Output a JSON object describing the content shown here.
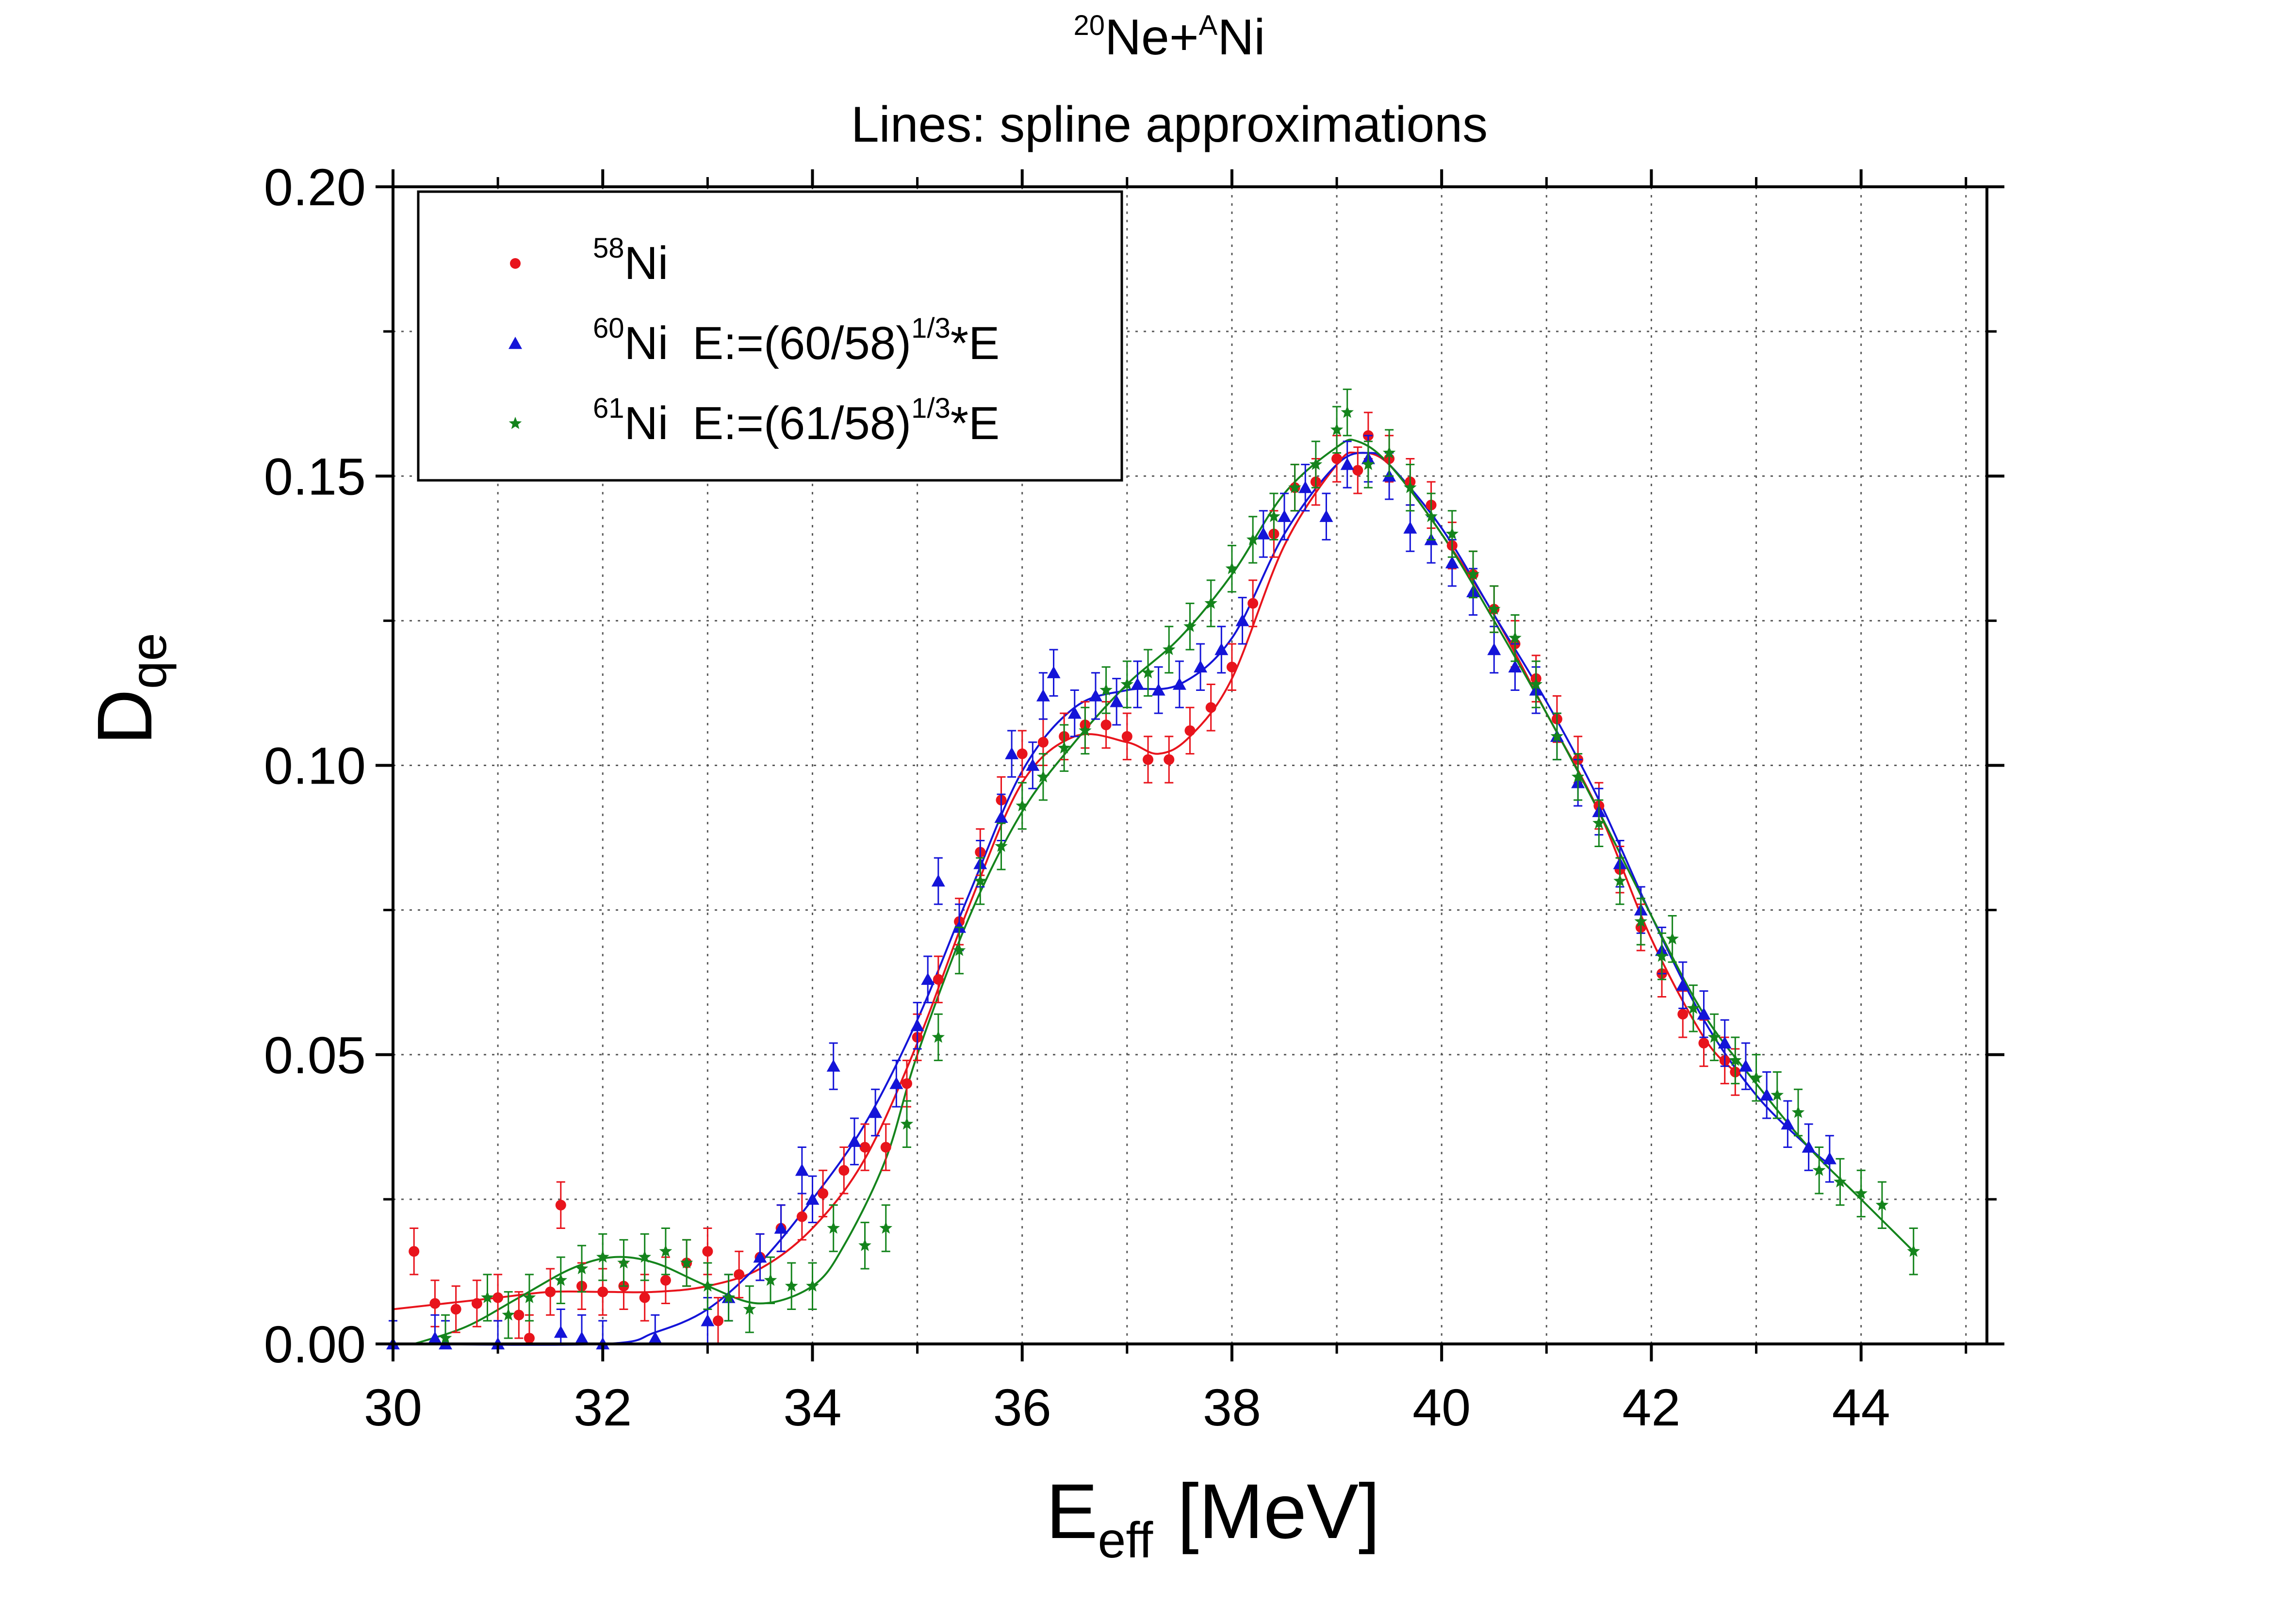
{
  "chart_data": {
    "type": "scatter",
    "title": {
      "line1": {
        "sup1": "20",
        "part1": "Ne+",
        "sup2": "A",
        "part2": "Ni"
      },
      "line2": "Lines: spline approximations"
    },
    "xlabel": {
      "main": "E",
      "sub": "eff",
      "unit": "[MeV]"
    },
    "ylabel": {
      "main": "D",
      "sub": "qe"
    },
    "xlim": [
      30,
      45.2
    ],
    "ylim": [
      0,
      0.2
    ],
    "xticks": [
      "30",
      "32",
      "34",
      "36",
      "38",
      "40",
      "42",
      "44"
    ],
    "yticks": [
      "0.00",
      "0.05",
      "0.10",
      "0.15",
      "0.20"
    ],
    "grid": true,
    "legend_position": "top-left",
    "series": [
      {
        "name": "58Ni",
        "color": "#e8141c",
        "marker": "circle",
        "legend": {
          "sup": "58",
          "label": "Ni",
          "transform": "",
          "transform_sup": "",
          "transform_end": ""
        },
        "points": [
          [
            30.2,
            0.016
          ],
          [
            30.4,
            0.007
          ],
          [
            30.6,
            0.006
          ],
          [
            30.8,
            0.007
          ],
          [
            31.0,
            0.008
          ],
          [
            31.2,
            0.005
          ],
          [
            31.3,
            0.001
          ],
          [
            31.5,
            0.009
          ],
          [
            31.6,
            0.024
          ],
          [
            31.8,
            0.01
          ],
          [
            32.0,
            0.009
          ],
          [
            32.2,
            0.01
          ],
          [
            32.4,
            0.008
          ],
          [
            32.6,
            0.011
          ],
          [
            32.8,
            0.014
          ],
          [
            33.0,
            0.016
          ],
          [
            33.1,
            0.004
          ],
          [
            33.3,
            0.012
          ],
          [
            33.5,
            0.015
          ],
          [
            33.7,
            0.02
          ],
          [
            33.9,
            0.022
          ],
          [
            34.1,
            0.026
          ],
          [
            34.3,
            0.03
          ],
          [
            34.5,
            0.034
          ],
          [
            34.7,
            0.034
          ],
          [
            34.9,
            0.045
          ],
          [
            35.0,
            0.053
          ],
          [
            35.2,
            0.063
          ],
          [
            35.4,
            0.073
          ],
          [
            35.6,
            0.085
          ],
          [
            35.8,
            0.094
          ],
          [
            36.0,
            0.102
          ],
          [
            36.2,
            0.104
          ],
          [
            36.4,
            0.105
          ],
          [
            36.6,
            0.107
          ],
          [
            36.8,
            0.107
          ],
          [
            37.0,
            0.105
          ],
          [
            37.2,
            0.101
          ],
          [
            37.4,
            0.101
          ],
          [
            37.6,
            0.106
          ],
          [
            37.8,
            0.11
          ],
          [
            38.0,
            0.117
          ],
          [
            38.2,
            0.128
          ],
          [
            38.4,
            0.14
          ],
          [
            38.6,
            0.148
          ],
          [
            38.8,
            0.149
          ],
          [
            39.0,
            0.153
          ],
          [
            39.2,
            0.151
          ],
          [
            39.3,
            0.157
          ],
          [
            39.5,
            0.153
          ],
          [
            39.7,
            0.149
          ],
          [
            39.9,
            0.145
          ],
          [
            40.1,
            0.138
          ],
          [
            40.3,
            0.133
          ],
          [
            40.5,
            0.127
          ],
          [
            40.7,
            0.121
          ],
          [
            40.9,
            0.115
          ],
          [
            41.1,
            0.108
          ],
          [
            41.3,
            0.101
          ],
          [
            41.5,
            0.093
          ],
          [
            41.7,
            0.082
          ],
          [
            41.9,
            0.072
          ],
          [
            42.1,
            0.064
          ],
          [
            42.3,
            0.057
          ],
          [
            42.5,
            0.052
          ],
          [
            42.7,
            0.049
          ],
          [
            42.8,
            0.047
          ]
        ],
        "curve": [
          [
            30.0,
            0.006
          ],
          [
            30.5,
            0.007
          ],
          [
            31.0,
            0.008
          ],
          [
            31.5,
            0.009
          ],
          [
            32.0,
            0.009
          ],
          [
            32.5,
            0.009
          ],
          [
            33.0,
            0.01
          ],
          [
            33.5,
            0.013
          ],
          [
            34.0,
            0.02
          ],
          [
            34.5,
            0.032
          ],
          [
            35.0,
            0.052
          ],
          [
            35.5,
            0.076
          ],
          [
            36.0,
            0.097
          ],
          [
            36.5,
            0.105
          ],
          [
            37.0,
            0.104
          ],
          [
            37.3,
            0.102
          ],
          [
            37.6,
            0.105
          ],
          [
            38.0,
            0.115
          ],
          [
            38.5,
            0.138
          ],
          [
            39.0,
            0.152
          ],
          [
            39.2,
            0.154
          ],
          [
            39.5,
            0.152
          ],
          [
            40.0,
            0.14
          ],
          [
            40.5,
            0.126
          ],
          [
            41.0,
            0.109
          ],
          [
            41.5,
            0.092
          ],
          [
            42.0,
            0.07
          ],
          [
            42.5,
            0.053
          ],
          [
            42.8,
            0.047
          ]
        ]
      },
      {
        "name": "60Ni",
        "color": "#1414d8",
        "marker": "triangle",
        "legend": {
          "sup": "60",
          "label": "Ni",
          "transform": "E:=(60/58)",
          "transform_sup": "1/3",
          "transform_end": "*E"
        },
        "points": [
          [
            30.0,
            0.0
          ],
          [
            30.4,
            0.001
          ],
          [
            30.5,
            0.0
          ],
          [
            31.0,
            0.0
          ],
          [
            31.6,
            0.002
          ],
          [
            31.8,
            0.001
          ],
          [
            32.0,
            0.0
          ],
          [
            32.5,
            0.001
          ],
          [
            33.0,
            0.004
          ],
          [
            33.2,
            0.008
          ],
          [
            33.5,
            0.015
          ],
          [
            33.7,
            0.02
          ],
          [
            33.9,
            0.03
          ],
          [
            34.0,
            0.025
          ],
          [
            34.2,
            0.048
          ],
          [
            34.4,
            0.035
          ],
          [
            34.6,
            0.04
          ],
          [
            34.8,
            0.045
          ],
          [
            35.0,
            0.055
          ],
          [
            35.1,
            0.063
          ],
          [
            35.2,
            0.08
          ],
          [
            35.4,
            0.072
          ],
          [
            35.6,
            0.083
          ],
          [
            35.8,
            0.091
          ],
          [
            35.9,
            0.102
          ],
          [
            36.1,
            0.1
          ],
          [
            36.2,
            0.112
          ],
          [
            36.3,
            0.116
          ],
          [
            36.5,
            0.109
          ],
          [
            36.7,
            0.112
          ],
          [
            36.9,
            0.111
          ],
          [
            37.1,
            0.114
          ],
          [
            37.3,
            0.113
          ],
          [
            37.5,
            0.114
          ],
          [
            37.7,
            0.117
          ],
          [
            37.9,
            0.12
          ],
          [
            38.1,
            0.125
          ],
          [
            38.3,
            0.14
          ],
          [
            38.5,
            0.143
          ],
          [
            38.7,
            0.148
          ],
          [
            38.9,
            0.143
          ],
          [
            39.1,
            0.152
          ],
          [
            39.3,
            0.153
          ],
          [
            39.5,
            0.15
          ],
          [
            39.7,
            0.141
          ],
          [
            39.9,
            0.139
          ],
          [
            40.1,
            0.135
          ],
          [
            40.3,
            0.13
          ],
          [
            40.5,
            0.12
          ],
          [
            40.7,
            0.117
          ],
          [
            40.9,
            0.113
          ],
          [
            41.1,
            0.105
          ],
          [
            41.3,
            0.097
          ],
          [
            41.5,
            0.092
          ],
          [
            41.7,
            0.083
          ],
          [
            41.9,
            0.075
          ],
          [
            42.1,
            0.068
          ],
          [
            42.3,
            0.062
          ],
          [
            42.5,
            0.057
          ],
          [
            42.7,
            0.052
          ],
          [
            42.9,
            0.048
          ],
          [
            43.1,
            0.043
          ],
          [
            43.3,
            0.038
          ],
          [
            43.5,
            0.034
          ],
          [
            43.7,
            0.032
          ]
        ],
        "curve": [
          [
            30.0,
            0.0
          ],
          [
            32.0,
            0.0
          ],
          [
            32.5,
            0.002
          ],
          [
            33.0,
            0.006
          ],
          [
            33.5,
            0.014
          ],
          [
            34.0,
            0.025
          ],
          [
            34.5,
            0.038
          ],
          [
            35.0,
            0.056
          ],
          [
            35.5,
            0.078
          ],
          [
            36.0,
            0.099
          ],
          [
            36.5,
            0.11
          ],
          [
            37.0,
            0.113
          ],
          [
            37.5,
            0.114
          ],
          [
            38.0,
            0.122
          ],
          [
            38.5,
            0.14
          ],
          [
            39.0,
            0.152
          ],
          [
            39.3,
            0.154
          ],
          [
            39.5,
            0.152
          ],
          [
            40.0,
            0.141
          ],
          [
            40.5,
            0.126
          ],
          [
            41.0,
            0.111
          ],
          [
            41.5,
            0.094
          ],
          [
            42.0,
            0.074
          ],
          [
            42.5,
            0.056
          ],
          [
            43.0,
            0.043
          ],
          [
            43.5,
            0.034
          ],
          [
            43.7,
            0.031
          ]
        ]
      },
      {
        "name": "61Ni",
        "color": "#14841c",
        "marker": "star",
        "legend": {
          "sup": "61",
          "label": "Ni",
          "transform": "E:=(61/58)",
          "transform_sup": "1/3",
          "transform_end": "*E"
        },
        "points": [
          [
            30.5,
            0.001
          ],
          [
            30.9,
            0.008
          ],
          [
            31.1,
            0.005
          ],
          [
            31.3,
            0.008
          ],
          [
            31.6,
            0.011
          ],
          [
            31.8,
            0.013
          ],
          [
            32.0,
            0.015
          ],
          [
            32.2,
            0.014
          ],
          [
            32.4,
            0.015
          ],
          [
            32.6,
            0.016
          ],
          [
            32.8,
            0.014
          ],
          [
            33.0,
            0.01
          ],
          [
            33.2,
            0.008
          ],
          [
            33.4,
            0.006
          ],
          [
            33.6,
            0.011
          ],
          [
            33.8,
            0.01
          ],
          [
            34.0,
            0.01
          ],
          [
            34.2,
            0.02
          ],
          [
            34.5,
            0.017
          ],
          [
            34.7,
            0.02
          ],
          [
            34.9,
            0.038
          ],
          [
            35.2,
            0.053
          ],
          [
            35.4,
            0.068
          ],
          [
            35.6,
            0.08
          ],
          [
            35.8,
            0.086
          ],
          [
            36.0,
            0.093
          ],
          [
            36.2,
            0.098
          ],
          [
            36.4,
            0.103
          ],
          [
            36.6,
            0.106
          ],
          [
            36.8,
            0.113
          ],
          [
            37.0,
            0.114
          ],
          [
            37.2,
            0.116
          ],
          [
            37.4,
            0.12
          ],
          [
            37.6,
            0.124
          ],
          [
            37.8,
            0.128
          ],
          [
            38.0,
            0.134
          ],
          [
            38.2,
            0.139
          ],
          [
            38.4,
            0.143
          ],
          [
            38.6,
            0.148
          ],
          [
            38.8,
            0.152
          ],
          [
            39.0,
            0.158
          ],
          [
            39.1,
            0.161
          ],
          [
            39.3,
            0.152
          ],
          [
            39.5,
            0.154
          ],
          [
            39.7,
            0.148
          ],
          [
            39.9,
            0.143
          ],
          [
            40.1,
            0.14
          ],
          [
            40.3,
            0.133
          ],
          [
            40.5,
            0.127
          ],
          [
            40.7,
            0.122
          ],
          [
            40.9,
            0.114
          ],
          [
            41.1,
            0.105
          ],
          [
            41.3,
            0.098
          ],
          [
            41.5,
            0.09
          ],
          [
            41.7,
            0.08
          ],
          [
            41.9,
            0.073
          ],
          [
            42.1,
            0.067
          ],
          [
            42.2,
            0.07
          ],
          [
            42.4,
            0.058
          ],
          [
            42.6,
            0.053
          ],
          [
            42.8,
            0.049
          ],
          [
            43.0,
            0.046
          ],
          [
            43.2,
            0.043
          ],
          [
            43.4,
            0.04
          ],
          [
            43.6,
            0.03
          ],
          [
            43.8,
            0.028
          ],
          [
            44.0,
            0.026
          ],
          [
            44.2,
            0.024
          ],
          [
            44.5,
            0.016
          ]
        ],
        "curve": [
          [
            30.2,
            0.0
          ],
          [
            30.7,
            0.003
          ],
          [
            31.2,
            0.008
          ],
          [
            31.7,
            0.013
          ],
          [
            32.1,
            0.015
          ],
          [
            32.5,
            0.014
          ],
          [
            33.0,
            0.01
          ],
          [
            33.5,
            0.007
          ],
          [
            34.0,
            0.01
          ],
          [
            34.3,
            0.017
          ],
          [
            34.7,
            0.032
          ],
          [
            35.0,
            0.05
          ],
          [
            35.5,
            0.074
          ],
          [
            36.0,
            0.092
          ],
          [
            36.5,
            0.104
          ],
          [
            37.0,
            0.114
          ],
          [
            37.5,
            0.122
          ],
          [
            38.0,
            0.133
          ],
          [
            38.5,
            0.147
          ],
          [
            39.0,
            0.155
          ],
          [
            39.2,
            0.156
          ],
          [
            39.5,
            0.152
          ],
          [
            40.0,
            0.14
          ],
          [
            40.5,
            0.125
          ],
          [
            41.0,
            0.109
          ],
          [
            41.5,
            0.092
          ],
          [
            42.0,
            0.074
          ],
          [
            42.5,
            0.057
          ],
          [
            43.0,
            0.045
          ],
          [
            43.5,
            0.034
          ],
          [
            44.0,
            0.025
          ],
          [
            44.5,
            0.016
          ]
        ]
      }
    ]
  }
}
